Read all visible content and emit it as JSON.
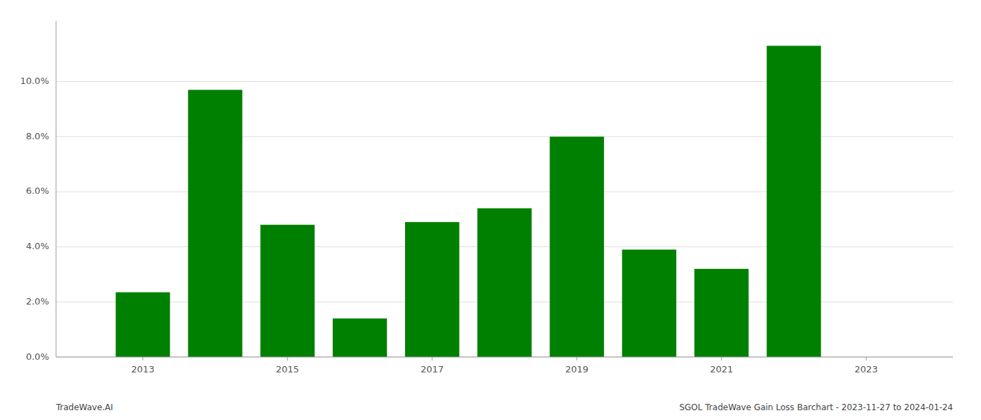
{
  "chart_data": {
    "type": "bar",
    "x": [
      2013,
      2014,
      2015,
      2016,
      2017,
      2018,
      2019,
      2020,
      2021,
      2022
    ],
    "values": [
      0.0235,
      0.097,
      0.048,
      0.014,
      0.049,
      0.054,
      0.08,
      0.039,
      0.032,
      0.113
    ],
    "color": "#008000",
    "xlim": [
      2011.8,
      2024.2
    ],
    "xticks": [
      2013,
      2015,
      2017,
      2019,
      2021,
      2023
    ],
    "ylim": [
      0,
      0.122
    ],
    "yticks": [
      {
        "value": 0.0,
        "label": "0.0%"
      },
      {
        "value": 0.02,
        "label": "2.0%"
      },
      {
        "value": 0.04,
        "label": "4.0%"
      },
      {
        "value": 0.06,
        "label": "6.0%"
      },
      {
        "value": 0.08,
        "label": "8.0%"
      },
      {
        "value": 0.1,
        "label": "10.0%"
      }
    ],
    "grid": true,
    "annotations": [
      "TradeWave.AI",
      "SGOL TradeWave Gain Loss Barchart - 2023-11-27 to 2024-01-24"
    ]
  }
}
